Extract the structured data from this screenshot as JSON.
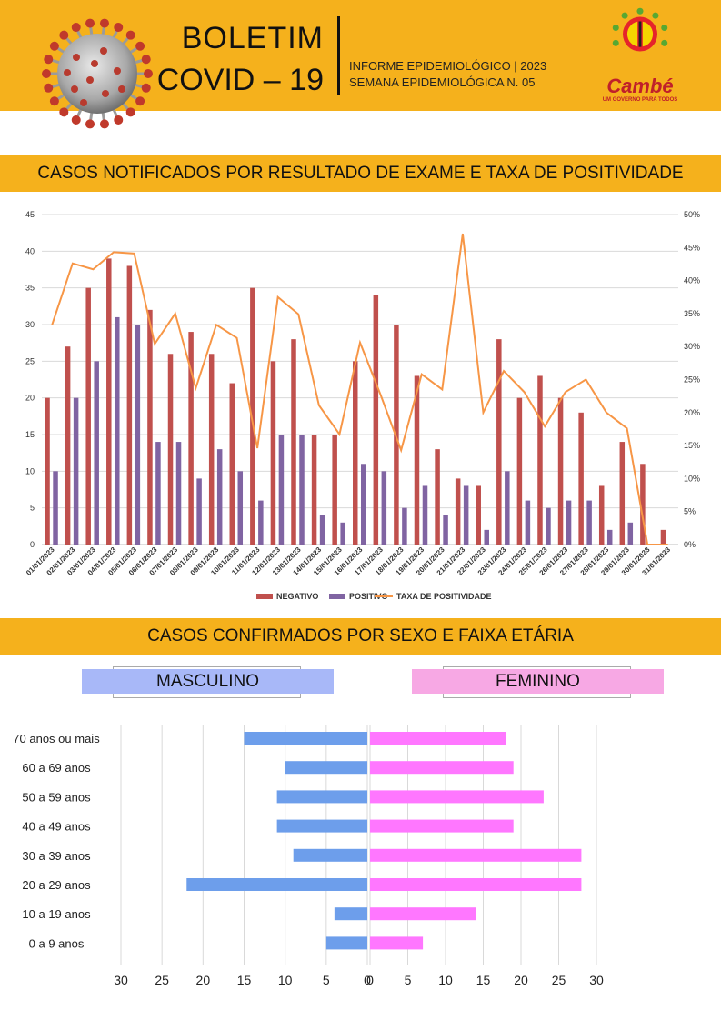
{
  "header": {
    "title_line1": "BOLETIM",
    "title_line2": "COVID – 19",
    "info_line1": "INFORME EPIDEMIOLÓGICO | 2023",
    "info_line2": "SEMANA EPIDEMIOLÓGICA  N. 05",
    "logo_name": "Cambé",
    "logo_slogan": "UM GOVERNO PARA TODOS",
    "accent_color": "#f5b11c"
  },
  "section1_title": "CASOS NOTIFICADOS POR RESULTADO DE EXAME E TAXA DE POSITIVIDADE",
  "section2_title": "CASOS CONFIRMADOS POR SEXO E FAIXA ETÁRIA",
  "sex_labels": {
    "male": "MASCULINO",
    "female": "FEMININO"
  },
  "chart_data": [
    {
      "type": "bar",
      "categories": [
        "01/01/2023",
        "02/01/2023",
        "03/01/2023",
        "04/01/2023",
        "05/01/2023",
        "06/01/2023",
        "07/01/2023",
        "08/01/2023",
        "09/01/2023",
        "10/01/2023",
        "11/01/2023",
        "12/01/2023",
        "13/01/2023",
        "14/01/2023",
        "15/01/2023",
        "16/01/2023",
        "17/01/2023",
        "18/01/2023",
        "19/01/2023",
        "20/01/2023",
        "21/01/2023",
        "22/01/2023",
        "23/01/2023",
        "24/01/2023",
        "25/01/2023",
        "26/01/2023",
        "27/01/2023",
        "28/01/2023",
        "29/01/2023",
        "30/01/2023",
        "31/01/2023"
      ],
      "series": [
        {
          "name": "NEGATIVO",
          "color": "#c0504d",
          "values": [
            20,
            27,
            35,
            39,
            38,
            32,
            26,
            29,
            26,
            22,
            35,
            25,
            28,
            15,
            15,
            25,
            34,
            30,
            23,
            13,
            9,
            8,
            28,
            20,
            23,
            20,
            18,
            8,
            14,
            11,
            2
          ]
        },
        {
          "name": "POSITIVO",
          "color": "#8064a2",
          "values": [
            10,
            20,
            25,
            31,
            30,
            14,
            14,
            9,
            13,
            10,
            6,
            15,
            15,
            4,
            3,
            11,
            10,
            5,
            8,
            4,
            8,
            2,
            10,
            6,
            5,
            6,
            6,
            2,
            3,
            0,
            0
          ]
        },
        {
          "name": "TAXA DE POSITIVIDADE",
          "color": "#f79646",
          "axis": "right",
          "values": [
            33.3,
            42.6,
            41.7,
            44.3,
            44.1,
            30.4,
            35.0,
            23.7,
            33.3,
            31.3,
            14.6,
            37.5,
            34.9,
            21.1,
            16.7,
            30.6,
            22.7,
            14.3,
            25.8,
            23.5,
            47.1,
            20.0,
            26.3,
            23.1,
            17.9,
            23.1,
            25.0,
            20.0,
            17.6,
            0,
            0
          ]
        }
      ],
      "y_left": {
        "min": 0,
        "max": 45,
        "ticks": [
          "0",
          "5",
          "10",
          "15",
          "20",
          "25",
          "30",
          "35",
          "40",
          "45"
        ]
      },
      "y_right": {
        "min": 0,
        "max": 50,
        "ticks": [
          "0%",
          "5%",
          "10%",
          "15%",
          "20%",
          "25%",
          "30%",
          "35%",
          "40%",
          "45%",
          "50%"
        ]
      },
      "grid": true,
      "legend_position": "bottom"
    },
    {
      "type": "bar",
      "orientation": "horizontal-butterfly",
      "categories": [
        "70 anos ou mais",
        "60 a 69 anos",
        "50 a 59 anos",
        "40 a 49 anos",
        "30 a 39 anos",
        "20 a 29 anos",
        "10 a 19 anos",
        "0 a 9 anos"
      ],
      "series": [
        {
          "name": "MASCULINO",
          "color": "#6d9eeb",
          "values": [
            15,
            10,
            11,
            11,
            9,
            22,
            4,
            5
          ]
        },
        {
          "name": "FEMININO",
          "color": "#ff77ff",
          "values": [
            18,
            19,
            23,
            19,
            28,
            28,
            14,
            7
          ]
        }
      ],
      "x_left_ticks": [
        "30",
        "25",
        "20",
        "15",
        "10",
        "5",
        "0"
      ],
      "x_right_ticks": [
        "0",
        "5",
        "10",
        "15",
        "20",
        "25",
        "30"
      ],
      "grid": true
    }
  ]
}
